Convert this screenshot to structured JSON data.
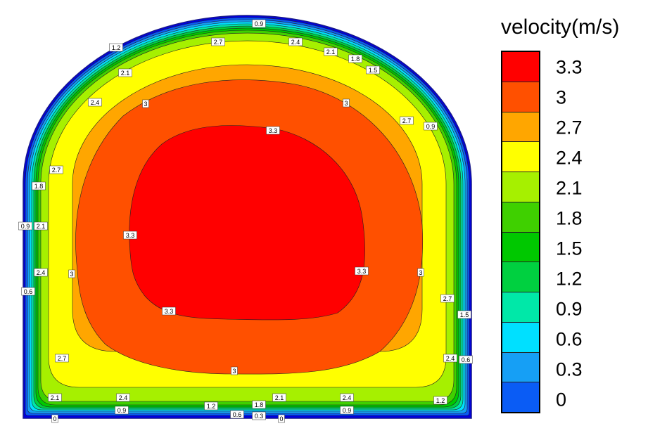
{
  "chart_data": {
    "type": "heatmap",
    "title": "",
    "colorbar_title": "velocity(m/s)",
    "levels": [
      0,
      0.3,
      0.6,
      0.9,
      1.2,
      1.5,
      1.8,
      2.1,
      2.4,
      2.7,
      3,
      3.3
    ],
    "level_labels": [
      "0",
      "0.3",
      "0.6",
      "0.9",
      "1.2",
      "1.5",
      "1.8",
      "2.1",
      "2.4",
      "2.7",
      "3",
      "3.3"
    ],
    "colors": [
      "#0000e0",
      "#0a5cf5",
      "#169ff5",
      "#00e0ff",
      "#00e8a8",
      "#00d040",
      "#00c800",
      "#3fd000",
      "#a6f000",
      "#ffff00",
      "#ffa600",
      "#ff5000",
      "#ff0000"
    ],
    "contour_labels": [
      "0.9",
      "2.7",
      "2.4",
      "2.1",
      "1.8",
      "1.5",
      "1.2",
      "0.6",
      "0.3",
      "0",
      "3",
      "3.3"
    ],
    "max_value_region": "3.3",
    "min_value_region": "0"
  }
}
